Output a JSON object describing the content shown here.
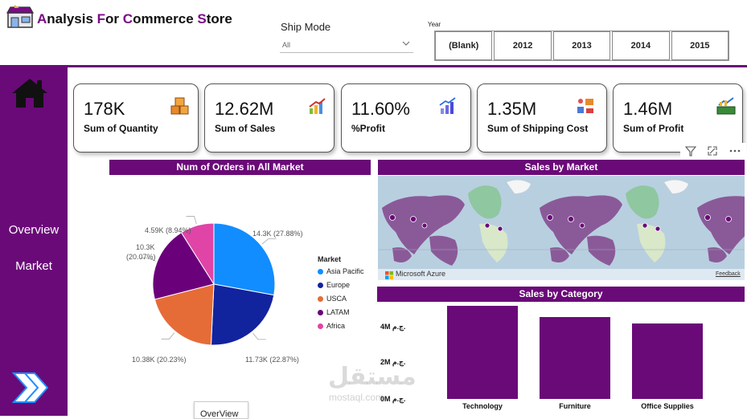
{
  "header": {
    "title_parts": [
      {
        "text": "A",
        "accent": true
      },
      {
        "text": "nalysis ",
        "accent": false
      },
      {
        "text": "F",
        "accent": true
      },
      {
        "text": "or ",
        "accent": false
      },
      {
        "text": "C",
        "accent": true
      },
      {
        "text": "ommerce ",
        "accent": false
      },
      {
        "text": "S",
        "accent": true
      },
      {
        "text": "tore",
        "accent": false
      }
    ],
    "logo_icon": "store-icon"
  },
  "filters": {
    "ship_mode_label": "Ship Mode",
    "ship_mode_value": "All",
    "year_label": "Year",
    "years": [
      "(Blank)",
      "2012",
      "2013",
      "2014",
      "2015"
    ]
  },
  "sidebar": {
    "home_icon": "home-icon",
    "items": [
      {
        "label": "Overview"
      },
      {
        "label": "Market"
      }
    ],
    "next_icon": "double-chevron-right-icon"
  },
  "kpis": [
    {
      "value": "178K",
      "label": "Sum of Quantity",
      "icon": "boxes-icon"
    },
    {
      "value": "12.62M",
      "label": "Sum of Sales",
      "icon": "bar-growth-icon"
    },
    {
      "value": "11.60%",
      "label": "%Profit",
      "icon": "growth-chart-icon"
    },
    {
      "value": "1.35M",
      "label": "Sum of Shipping Cost",
      "icon": "delivery-icon"
    },
    {
      "value": "1.46M",
      "label": "Sum of Profit",
      "icon": "profit-board-icon"
    }
  ],
  "pie": {
    "title": "Num of Orders in All Market",
    "legend_title": "Market",
    "labels": [
      "14.3K (27.88%)",
      "11.73K (22.87%)",
      "10.38K (20.23%)",
      "10.3K",
      "(20.07%)",
      "4.59K (8.94%)"
    ]
  },
  "map": {
    "title": "Sales by Market",
    "provider": "Microsoft Azure",
    "feedback": "Feedback"
  },
  "category": {
    "title": "Sales by Category",
    "yticks": [
      "4M ج.م.",
      "2M ج.م.",
      "0M ج.م."
    ]
  },
  "watermark": {
    "main": "مستقل",
    "sub": "mostaql.com"
  },
  "tooltip": "OverView",
  "chart_data": [
    {
      "type": "pie",
      "title": "Num of Orders in All Market",
      "legend_title": "Market",
      "series": [
        {
          "name": "Asia Pacific",
          "value": 14300,
          "pct": 27.88,
          "color": "#118dff"
        },
        {
          "name": "Europe",
          "value": 11730,
          "pct": 22.87,
          "color": "#12239e"
        },
        {
          "name": "USCA",
          "value": 10380,
          "pct": 20.23,
          "color": "#e66c37"
        },
        {
          "name": "LATAM",
          "value": 10300,
          "pct": 20.07,
          "color": "#6b007b"
        },
        {
          "name": "Africa",
          "value": 4590,
          "pct": 8.94,
          "color": "#e044a7"
        }
      ]
    },
    {
      "type": "bar",
      "title": "Sales by Category",
      "categories": [
        "Technology",
        "Furniture",
        "Office Supplies"
      ],
      "values": [
        4.7,
        4.1,
        3.8
      ],
      "ylim": [
        0,
        5
      ],
      "color": "#6a0a78"
    }
  ]
}
